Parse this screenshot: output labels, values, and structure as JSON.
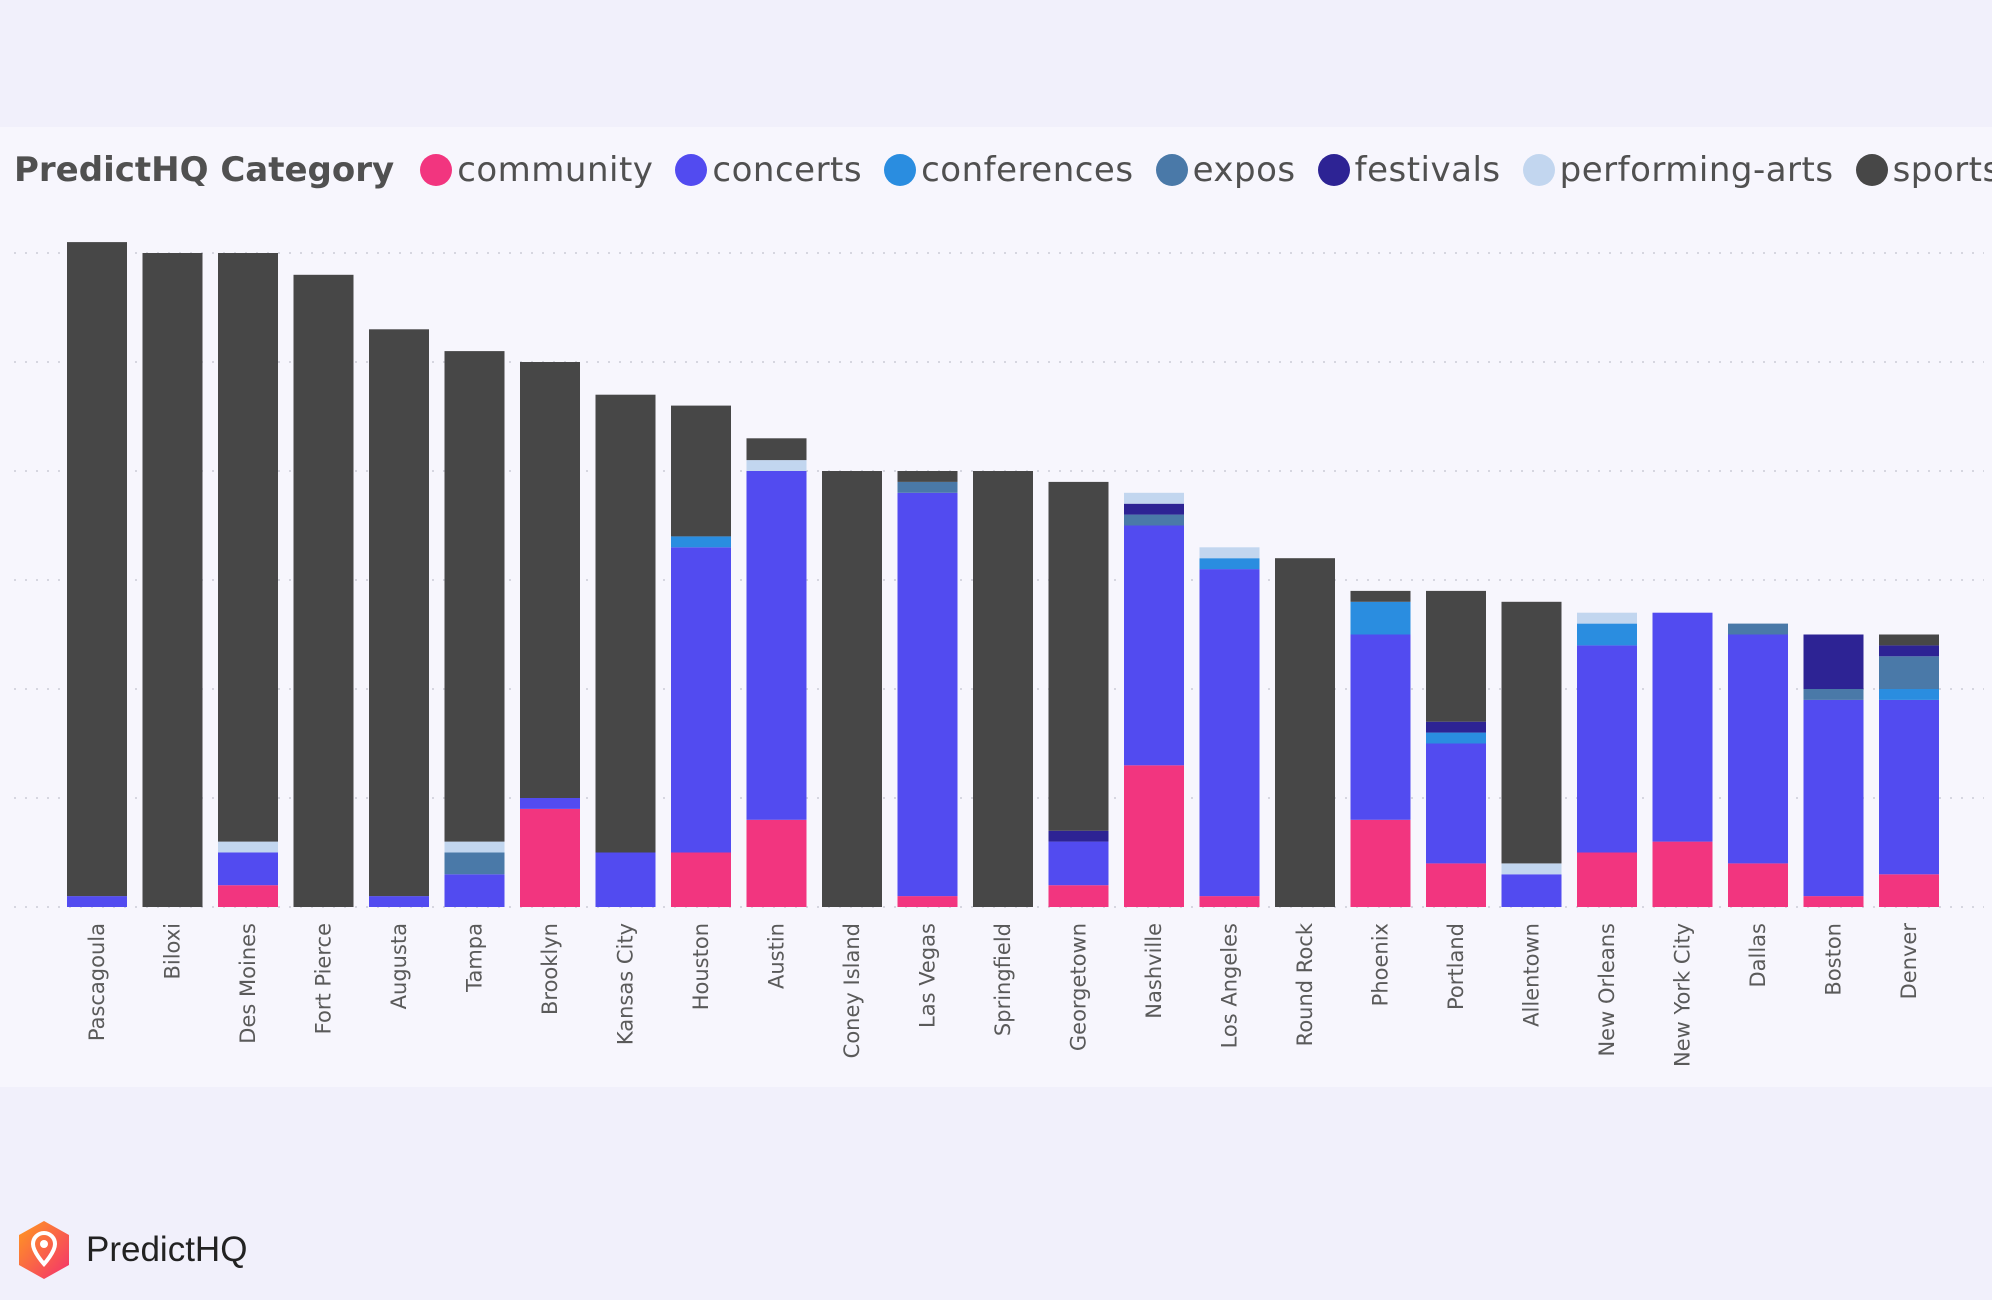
{
  "legend": {
    "title": "PredictHQ Category"
  },
  "brand": {
    "name": "PredictHQ",
    "logo": "predicthq-pin-logo"
  },
  "chart_data": {
    "type": "bar",
    "stacked": true,
    "grid": true,
    "legend_position": "top-left",
    "ylim": [
      0,
      600
    ],
    "categories": [
      "Pascagoula",
      "Biloxi",
      "Des Moines",
      "Fort Pierce",
      "Augusta",
      "Tampa",
      "Brooklyn",
      "Kansas City",
      "Houston",
      "Austin",
      "Coney Island",
      "Las Vegas",
      "Springfield",
      "Georgetown",
      "Nashville",
      "Los Angeles",
      "Round Rock",
      "Phoenix",
      "Portland",
      "Allentown",
      "New Orleans",
      "New York City",
      "Dallas",
      "Boston",
      "Denver"
    ],
    "series": [
      {
        "name": "community",
        "color": "#f2357f",
        "values": [
          0,
          0,
          20,
          0,
          0,
          0,
          90,
          0,
          50,
          80,
          0,
          10,
          0,
          20,
          130,
          10,
          0,
          80,
          40,
          0,
          50,
          60,
          40,
          10,
          30
        ]
      },
      {
        "name": "concerts",
        "color": "#524bf0",
        "values": [
          10,
          0,
          30,
          0,
          10,
          30,
          10,
          50,
          280,
          320,
          0,
          370,
          0,
          40,
          220,
          300,
          0,
          170,
          110,
          30,
          190,
          210,
          210,
          180,
          160
        ]
      },
      {
        "name": "conferences",
        "color": "#2a8de0",
        "values": [
          0,
          0,
          0,
          0,
          0,
          0,
          0,
          0,
          10,
          0,
          0,
          0,
          0,
          0,
          0,
          10,
          0,
          30,
          10,
          0,
          20,
          0,
          0,
          0,
          10
        ]
      },
      {
        "name": "expos",
        "color": "#4a79a8",
        "values": [
          0,
          0,
          0,
          0,
          0,
          20,
          0,
          0,
          0,
          0,
          0,
          10,
          0,
          0,
          10,
          0,
          0,
          0,
          0,
          0,
          0,
          0,
          10,
          10,
          30
        ]
      },
      {
        "name": "festivals",
        "color": "#2d2394",
        "values": [
          0,
          0,
          0,
          0,
          0,
          0,
          0,
          0,
          0,
          0,
          0,
          0,
          0,
          10,
          10,
          0,
          0,
          0,
          10,
          0,
          0,
          0,
          0,
          50,
          10
        ]
      },
      {
        "name": "performing-arts",
        "color": "#c2d6ef",
        "values": [
          0,
          0,
          10,
          0,
          0,
          10,
          0,
          0,
          0,
          10,
          0,
          0,
          0,
          0,
          10,
          10,
          0,
          0,
          0,
          10,
          10,
          0,
          0,
          0,
          0
        ]
      },
      {
        "name": "sports",
        "color": "#474747",
        "values": [
          600,
          600,
          540,
          580,
          520,
          450,
          400,
          420,
          120,
          20,
          400,
          10,
          400,
          320,
          0,
          0,
          320,
          10,
          120,
          240,
          0,
          0,
          0,
          0,
          10
        ]
      }
    ]
  }
}
